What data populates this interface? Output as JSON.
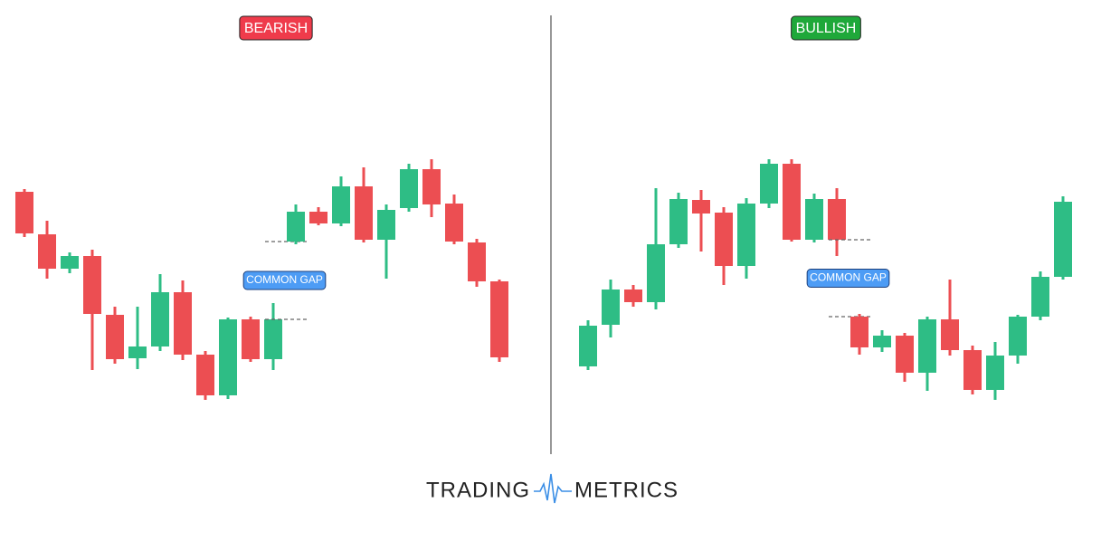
{
  "chart_data": [
    {
      "type": "candlestick",
      "title": "BEARISH",
      "title_color": "#ef3b4b",
      "annotation": "COMMON GAP",
      "up_color": "#2ebd85",
      "down_color": "#ec4e52",
      "ylim": [
        0,
        600
      ],
      "open": [
        388,
        341,
        303,
        317,
        252,
        204,
        217,
        277,
        208,
        163,
        247,
        203,
        333,
        366,
        353,
        394,
        335,
        370,
        413,
        375,
        332,
        289
      ],
      "close": [
        342,
        303,
        317,
        253,
        203,
        217,
        277,
        208,
        163,
        247,
        203,
        247,
        366,
        353,
        394,
        335,
        368,
        413,
        374,
        333,
        289,
        205
      ],
      "high": [
        391,
        356,
        321,
        324,
        261,
        261,
        297,
        290,
        212,
        249,
        250,
        265,
        374,
        371,
        405,
        415,
        374,
        419,
        424,
        385,
        336,
        291
      ],
      "low": [
        338,
        292,
        298,
        191,
        198,
        192,
        212,
        202,
        158,
        159,
        200,
        191,
        330,
        351,
        350,
        332,
        292,
        366,
        360,
        330,
        283,
        200
      ]
    },
    {
      "type": "candlestick",
      "title": "BULLISH",
      "title_color": "#1fa83a",
      "annotation": "COMMON GAP",
      "up_color": "#2ebd85",
      "down_color": "#ec4e52",
      "ylim": [
        0,
        600
      ],
      "open": [
        195,
        241,
        280,
        266,
        330,
        379,
        365,
        306,
        375,
        419,
        335,
        380,
        250,
        216,
        229,
        188,
        247,
        213,
        169,
        207,
        250,
        294
      ],
      "close": [
        240,
        280,
        266,
        330,
        380,
        364,
        306,
        375,
        419,
        335,
        380,
        335,
        216,
        229,
        188,
        247,
        213,
        169,
        207,
        250,
        294,
        377
      ],
      "high": [
        246,
        291,
        285,
        392,
        387,
        390,
        371,
        381,
        424,
        424,
        386,
        392,
        253,
        235,
        232,
        250,
        291,
        218,
        222,
        252,
        300,
        383
      ],
      "low": [
        191,
        227,
        261,
        258,
        326,
        322,
        285,
        292,
        370,
        333,
        332,
        317,
        208,
        211,
        178,
        168,
        207,
        164,
        158,
        198,
        246,
        291
      ]
    }
  ],
  "logo": {
    "left": "TRADING",
    "right": "METRICS"
  }
}
